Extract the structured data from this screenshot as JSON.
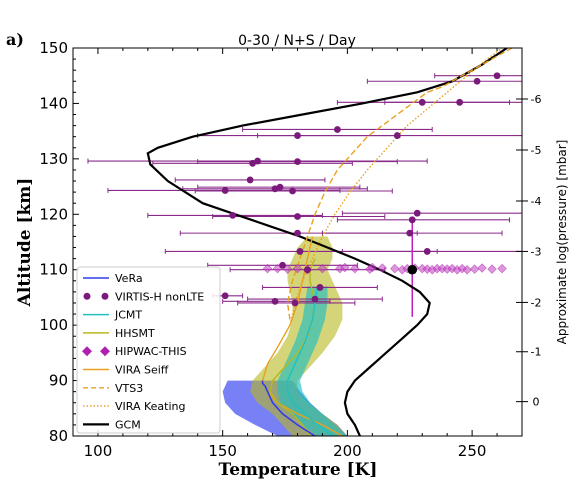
{
  "panel_label": "a)",
  "chart_data": {
    "type": "line",
    "title": "0-30 / N+S / Day",
    "xlabel": "Temperature [K]",
    "ylabel": "Altitude [km]",
    "y2label": "Approximate log(pressure) [mbar]",
    "xlim": [
      90,
      270
    ],
    "ylim": [
      80,
      150
    ],
    "xticks": [
      100,
      150,
      200,
      250
    ],
    "yticks": [
      80,
      90,
      100,
      110,
      120,
      130,
      140,
      150
    ],
    "y2ticks": [
      {
        "label": "0",
        "alt": 86.2
      },
      {
        "label": "-1",
        "alt": 95.2
      },
      {
        "label": "-2",
        "alt": 104.1
      },
      {
        "label": "-3",
        "alt": 113.3
      },
      {
        "label": "-4",
        "alt": 122.4
      },
      {
        "label": "-5",
        "alt": 131.6
      },
      {
        "label": "-6",
        "alt": 140.8
      }
    ],
    "grid": false,
    "legend_position": "lower-left",
    "legend": [
      {
        "label": "VeRa",
        "kind": "line",
        "color": "#2e3cf0"
      },
      {
        "label": "VIRTIS-H nonLTE",
        "kind": "dot",
        "color": "#7a1a7a"
      },
      {
        "label": "JCMT",
        "kind": "line",
        "color": "#20c0c0"
      },
      {
        "label": "HHSMT",
        "kind": "line",
        "color": "#b8b820"
      },
      {
        "label": "HIPWAC-THIS",
        "kind": "diamond",
        "color": "#b020b0"
      },
      {
        "label": "VIRA Seiff",
        "kind": "line",
        "color": "#e8a020"
      },
      {
        "label": "VTS3",
        "kind": "dash",
        "color": "#e8a020"
      },
      {
        "label": "VIRA Keating",
        "kind": "dot-line",
        "color": "#e8a020"
      },
      {
        "label": "GCM",
        "kind": "line",
        "color": "#000000"
      }
    ],
    "series": [
      {
        "name": "GCM",
        "color": "#000000",
        "x": [
          205,
          203,
          200,
          199,
          200,
          203,
          208,
          213,
          218,
          223,
          228,
          232,
          233,
          229,
          222,
          213,
          203,
          192,
          181,
          168,
          155,
          142,
          128,
          121,
          120,
          124,
          138,
          158,
          182,
          206,
          228,
          242,
          254,
          264
        ],
        "y": [
          80,
          82,
          84,
          86,
          88,
          90,
          92,
          94,
          96,
          98,
          100,
          102,
          104,
          106,
          108,
          110,
          112,
          114,
          116,
          118,
          120,
          122,
          126,
          129,
          131,
          132,
          134,
          136,
          138,
          140,
          142,
          144,
          147,
          150
        ]
      },
      {
        "name": "VIRA Seiff",
        "color": "#e8a020",
        "x": [
          198,
          190,
          180,
          172,
          168,
          166,
          168,
          172,
          177,
          180,
          182,
          184,
          186
        ],
        "y": [
          80,
          82,
          84,
          86,
          88,
          90,
          93,
          96,
          100,
          104,
          108,
          112,
          116
        ]
      },
      {
        "name": "VTS3",
        "color": "#e8a020",
        "x": [
          177,
          176,
          178,
          181,
          184,
          187,
          191,
          196,
          202,
          208,
          214,
          220,
          226,
          232,
          238,
          246,
          254,
          262,
          266
        ],
        "y": [
          101,
          104,
          108,
          112,
          116,
          120,
          124,
          128,
          131,
          134,
          136,
          138,
          140,
          142,
          143,
          145,
          147,
          149,
          150
        ]
      },
      {
        "name": "VIRA Keating",
        "color": "#e8a020",
        "x": [
          177,
          179,
          182,
          186,
          190,
          195,
          201,
          208,
          216,
          224,
          232,
          240,
          248,
          256,
          262
        ],
        "y": [
          100,
          104,
          108,
          112,
          116,
          120,
          124,
          128,
          132,
          136,
          139,
          142,
          145,
          148,
          150
        ]
      },
      {
        "name": "HHSMT",
        "color": "#b8b820",
        "x": [
          185,
          182,
          178,
          172,
          169,
          170,
          174,
          180,
          184,
          186,
          187,
          186,
          185,
          185,
          187
        ],
        "y": [
          80,
          82,
          84,
          86,
          88,
          90,
          92,
          95,
          98,
          101,
          104,
          106,
          108,
          110,
          112
        ]
      },
      {
        "name": "JCMT",
        "color": "#20c0c0",
        "x": [
          194,
          188,
          183,
          178,
          176,
          176,
          179,
          183,
          186,
          187,
          188
        ],
        "y": [
          80,
          82,
          84,
          86,
          88,
          90,
          93,
          97,
          101,
          104,
          107
        ]
      },
      {
        "name": "VeRa",
        "color": "#2e3cf0",
        "x": [
          187,
          180,
          174,
          170,
          168,
          167,
          166,
          166
        ],
        "y": [
          80,
          82,
          84,
          86,
          88,
          89,
          89.5,
          90
        ]
      }
    ],
    "bands": [
      {
        "name": "VeRa",
        "color": "#2e3cf0",
        "opacity": 0.65,
        "y": [
          80,
          82,
          84,
          86,
          88,
          90
        ],
        "lo": [
          172,
          163,
          155,
          151,
          150,
          152
        ],
        "hi": [
          200,
          196,
          190,
          185,
          181,
          178
        ]
      },
      {
        "name": "HHSMT",
        "color": "#b8b820",
        "opacity": 0.6,
        "y": [
          80,
          82,
          84,
          86,
          88,
          90,
          92,
          95,
          98,
          101,
          104,
          106,
          108,
          110,
          112,
          114,
          116
        ],
        "lo": [
          178,
          174,
          170,
          164,
          161,
          162,
          166,
          172,
          176,
          178,
          178,
          177,
          176,
          176,
          178,
          180,
          184
        ],
        "hi": [
          200,
          196,
          190,
          184,
          180,
          180,
          184,
          190,
          195,
          198,
          198,
          196,
          194,
          192,
          194,
          194,
          192
        ]
      },
      {
        "name": "JCMT",
        "color": "#20c0c0",
        "opacity": 0.65,
        "y": [
          80,
          82,
          84,
          86,
          88,
          90,
          93,
          97,
          101,
          104,
          107
        ],
        "lo": [
          188,
          182,
          177,
          173,
          172,
          172,
          175,
          179,
          182,
          183,
          184
        ],
        "hi": [
          200,
          195,
          190,
          185,
          182,
          181,
          184,
          188,
          191,
          192,
          192
        ]
      }
    ],
    "virtis_points": [
      {
        "x": 151,
        "y": 105.3,
        "lo": 146,
        "hi": 158
      },
      {
        "x": 171,
        "y": 104.3,
        "lo": 150,
        "hi": 193
      },
      {
        "x": 179,
        "y": 104.0,
        "lo": 156,
        "hi": 203
      },
      {
        "x": 187,
        "y": 104.7,
        "lo": 160,
        "hi": 214
      },
      {
        "x": 189,
        "y": 106.8,
        "lo": 166,
        "hi": 212
      },
      {
        "x": 184,
        "y": 110.0,
        "lo": 153,
        "hi": 215
      },
      {
        "x": 174,
        "y": 110.8,
        "lo": 144,
        "hi": 204
      },
      {
        "x": 181,
        "y": 113.3,
        "lo": 127,
        "hi": 236
      },
      {
        "x": 180,
        "y": 116.6,
        "lo": 133,
        "hi": 228
      },
      {
        "x": 232,
        "y": 113.3,
        "lo": 198,
        "hi": 270
      },
      {
        "x": 225,
        "y": 116.6,
        "lo": 190,
        "hi": 262
      },
      {
        "x": 226,
        "y": 119.0,
        "lo": 196,
        "hi": 265
      },
      {
        "x": 228,
        "y": 120.2,
        "lo": 198,
        "hi": 270
      },
      {
        "x": 154,
        "y": 119.8,
        "lo": 120,
        "hi": 190
      },
      {
        "x": 180,
        "y": 119.6,
        "lo": 146,
        "hi": 215
      },
      {
        "x": 161,
        "y": 126.2,
        "lo": 131,
        "hi": 191
      },
      {
        "x": 151,
        "y": 124.3,
        "lo": 104,
        "hi": 197
      },
      {
        "x": 171,
        "y": 124.6,
        "lo": 134,
        "hi": 208
      },
      {
        "x": 173,
        "y": 124.9,
        "lo": 140,
        "hi": 205
      },
      {
        "x": 178,
        "y": 124.2,
        "lo": 139,
        "hi": 218
      },
      {
        "x": 162,
        "y": 129.2,
        "lo": 122,
        "hi": 202
      },
      {
        "x": 164,
        "y": 129.6,
        "lo": 96,
        "hi": 232
      },
      {
        "x": 180,
        "y": 129.5,
        "lo": 140,
        "hi": 220
      },
      {
        "x": 180,
        "y": 134.2,
        "lo": 140,
        "hi": 221
      },
      {
        "x": 196,
        "y": 135.3,
        "lo": 158,
        "hi": 234
      },
      {
        "x": 220,
        "y": 134.2,
        "lo": 164,
        "hi": 270
      },
      {
        "x": 230,
        "y": 140.2,
        "lo": 196,
        "hi": 265
      },
      {
        "x": 245,
        "y": 140.2,
        "lo": 215,
        "hi": 270
      },
      {
        "x": 252,
        "y": 144.0,
        "lo": 208,
        "hi": 270
      },
      {
        "x": 260,
        "y": 145.0,
        "lo": 235,
        "hi": 270
      }
    ],
    "hipwac_points": [
      {
        "x": 190,
        "y": 110.2
      },
      {
        "x": 197,
        "y": 110.2
      },
      {
        "x": 203,
        "y": 110.2
      },
      {
        "x": 209,
        "y": 110.1
      },
      {
        "x": 214,
        "y": 110.3
      },
      {
        "x": 219,
        "y": 110.2
      },
      {
        "x": 222,
        "y": 110.0
      },
      {
        "x": 224,
        "y": 110.2
      },
      {
        "x": 227,
        "y": 110.3
      },
      {
        "x": 230,
        "y": 110.2
      },
      {
        "x": 232,
        "y": 110.1
      },
      {
        "x": 234,
        "y": 110.0
      },
      {
        "x": 236,
        "y": 110.2
      },
      {
        "x": 238,
        "y": 110.2
      },
      {
        "x": 240,
        "y": 110.1
      },
      {
        "x": 242,
        "y": 110.2
      },
      {
        "x": 244,
        "y": 110.0
      },
      {
        "x": 246,
        "y": 110.2
      },
      {
        "x": 248,
        "y": 110.0
      },
      {
        "x": 251,
        "y": 110.1
      },
      {
        "x": 254,
        "y": 110.3
      },
      {
        "x": 258,
        "y": 110.1
      },
      {
        "x": 262,
        "y": 110.2
      },
      {
        "x": 199,
        "y": 110.4
      },
      {
        "x": 168,
        "y": 110.2
      },
      {
        "x": 172,
        "y": 110.2
      },
      {
        "x": 176,
        "y": 110.1
      },
      {
        "x": 180,
        "y": 110.2
      },
      {
        "x": 184,
        "y": 110.0
      },
      {
        "x": 210,
        "y": 110.4
      }
    ],
    "hipwac_mean": {
      "x": 226,
      "y": 110.0,
      "ylo": 101.5,
      "yhi": 119.5
    }
  }
}
